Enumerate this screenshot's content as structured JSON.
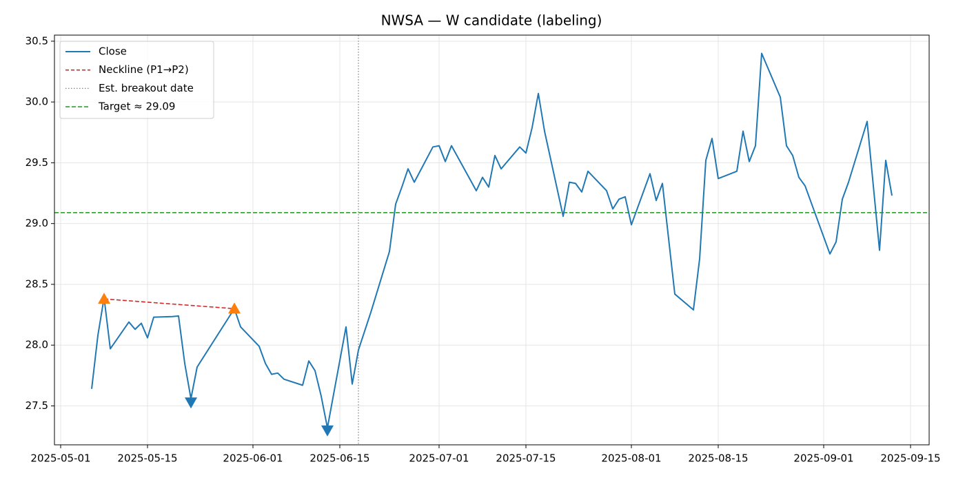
{
  "chart_data": {
    "type": "line",
    "title": "NWSA — W candidate (labeling)",
    "x": [
      "2025-05-06",
      "2025-05-07",
      "2025-05-08",
      "2025-05-09",
      "2025-05-12",
      "2025-05-13",
      "2025-05-14",
      "2025-05-15",
      "2025-05-16",
      "2025-05-19",
      "2025-05-20",
      "2025-05-21",
      "2025-05-22",
      "2025-05-23",
      "2025-05-29",
      "2025-05-30",
      "2025-06-02",
      "2025-06-03",
      "2025-06-04",
      "2025-06-05",
      "2025-06-06",
      "2025-06-09",
      "2025-06-10",
      "2025-06-11",
      "2025-06-12",
      "2025-06-13",
      "2025-06-16",
      "2025-06-17",
      "2025-06-18",
      "2025-06-20",
      "2025-06-23",
      "2025-06-24",
      "2025-06-25",
      "2025-06-26",
      "2025-06-27",
      "2025-06-30",
      "2025-07-01",
      "2025-07-02",
      "2025-07-03",
      "2025-07-07",
      "2025-07-08",
      "2025-07-09",
      "2025-07-10",
      "2025-07-11",
      "2025-07-14",
      "2025-07-15",
      "2025-07-16",
      "2025-07-17",
      "2025-07-18",
      "2025-07-21",
      "2025-07-22",
      "2025-07-23",
      "2025-07-24",
      "2025-07-25",
      "2025-07-28",
      "2025-07-29",
      "2025-07-30",
      "2025-07-31",
      "2025-08-01",
      "2025-08-04",
      "2025-08-05",
      "2025-08-06",
      "2025-08-08",
      "2025-08-11",
      "2025-08-12",
      "2025-08-13",
      "2025-08-14",
      "2025-08-15",
      "2025-08-18",
      "2025-08-19",
      "2025-08-20",
      "2025-08-21",
      "2025-08-22",
      "2025-08-25",
      "2025-08-26",
      "2025-08-27",
      "2025-08-28",
      "2025-08-29",
      "2025-09-02",
      "2025-09-03",
      "2025-09-04",
      "2025-09-05",
      "2025-09-08",
      "2025-09-10",
      "2025-09-11",
      "2025-09-12"
    ],
    "series": [
      {
        "name": "Close",
        "color": "#1f77b4",
        "values": [
          27.64,
          28.08,
          28.39,
          27.97,
          28.19,
          28.13,
          28.18,
          28.06,
          28.23,
          28.235,
          28.24,
          27.85,
          27.56,
          27.82,
          28.3,
          28.15,
          27.99,
          27.85,
          27.76,
          27.77,
          27.72,
          27.67,
          27.87,
          27.79,
          27.58,
          27.32,
          28.15,
          27.68,
          27.96,
          28.27,
          28.77,
          29.16,
          29.3,
          29.45,
          29.34,
          29.63,
          29.64,
          29.51,
          29.64,
          29.27,
          29.38,
          29.3,
          29.56,
          29.45,
          29.63,
          29.58,
          29.79,
          30.07,
          29.76,
          29.06,
          29.34,
          29.33,
          29.26,
          29.43,
          29.27,
          29.12,
          29.2,
          29.22,
          28.99,
          29.41,
          29.19,
          29.33,
          28.42,
          28.29,
          28.71,
          29.52,
          29.7,
          29.37,
          29.43,
          29.76,
          29.51,
          29.64,
          30.4,
          30.04,
          29.64,
          29.56,
          29.38,
          29.31,
          28.75,
          28.85,
          29.2,
          29.34,
          29.84,
          28.78,
          29.52,
          29.23
        ]
      }
    ],
    "neckline": {
      "name": "Neckline (P1→P2)",
      "color": "#d62728",
      "x": [
        "2025-05-08",
        "2025-05-29"
      ],
      "values": [
        28.38,
        28.3
      ]
    },
    "breakout": {
      "name": "Est. breakout date",
      "color": "#808080",
      "x": "2025-06-18"
    },
    "target": {
      "name": "Target ≈ 29.09",
      "color": "#2ca02c",
      "value": 29.09
    },
    "peaks": {
      "color": "#ff7f0e",
      "x": [
        "2025-05-08",
        "2025-05-29"
      ],
      "values": [
        28.38,
        28.3
      ]
    },
    "troughs": {
      "color": "#1f77b4",
      "x": [
        "2025-05-22",
        "2025-06-13"
      ],
      "values": [
        27.53,
        27.3
      ]
    },
    "xlim": [
      "2025-04-30",
      "2025-09-18"
    ],
    "xticks": [
      "2025-05-01",
      "2025-05-15",
      "2025-06-01",
      "2025-06-15",
      "2025-07-01",
      "2025-07-15",
      "2025-08-01",
      "2025-08-15",
      "2025-09-01",
      "2025-09-15"
    ],
    "ylim": [
      27.18,
      30.55
    ],
    "yticks": [
      27.5,
      {
        "value": 28,
        "label": "28.0"
      },
      28.5,
      {
        "value": 29,
        "label": "29.0"
      },
      29.5,
      {
        "value": 30,
        "label": "30.0"
      },
      30.5
    ],
    "grid": true,
    "legend": "upper left"
  }
}
